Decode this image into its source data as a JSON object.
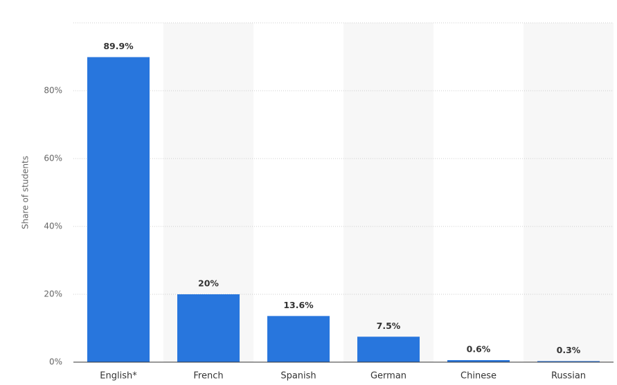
{
  "chart_data": {
    "type": "bar",
    "y_label": "Share of students",
    "categories": [
      "English*",
      "French",
      "Spanish",
      "German",
      "Chinese",
      "Russian"
    ],
    "values": [
      89.9,
      20,
      13.6,
      7.5,
      0.6,
      0.3
    ],
    "value_labels": [
      "89.9%",
      "20%",
      "13.6%",
      "7.5%",
      "0.6%",
      "0.3%"
    ],
    "color": "#2876dd",
    "ylim": [
      0,
      100
    ],
    "yticks": [
      {
        "value": 0,
        "label": "0%"
      },
      {
        "value": 20,
        "label": "20%"
      },
      {
        "value": 40,
        "label": "40%"
      },
      {
        "value": 60,
        "label": "60%"
      },
      {
        "value": 80,
        "label": "80%"
      }
    ],
    "grid": true
  }
}
